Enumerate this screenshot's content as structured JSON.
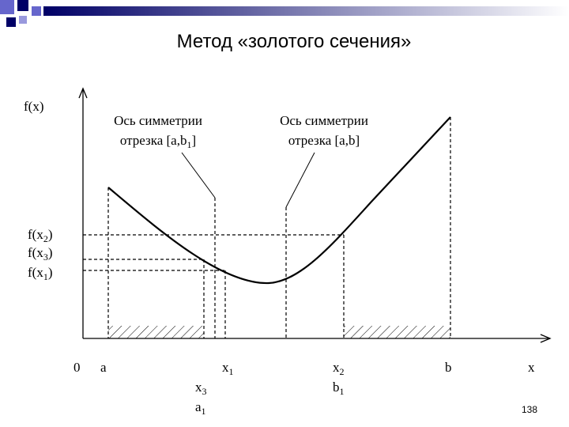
{
  "title": "Метод «золотого сечения»",
  "page_number": "138",
  "labels": [
    {
      "base": "f(x)"
    },
    {
      "base": "f(x",
      "sub": "2",
      "tail": ")"
    },
    {
      "base": "f(x",
      "sub": "3",
      "tail": ")"
    },
    {
      "base": "f(x",
      "sub": "1",
      "tail": ")"
    },
    {
      "base": "0"
    },
    {
      "base": "a"
    },
    {
      "base": "x",
      "sub": "1"
    },
    {
      "base": "x",
      "sub": "2"
    },
    {
      "base": "b"
    },
    {
      "base": "x"
    },
    {
      "base": "x",
      "sub": "3"
    },
    {
      "base": "a",
      "sub": "1"
    },
    {
      "base": "b",
      "sub": "1"
    }
  ],
  "annotations": [
    {
      "line1": "Ось симметрии",
      "line2": {
        "base": "отрезка [a,b",
        "sub": "1",
        "tail": "]"
      }
    },
    {
      "line1": "Ось симметрии",
      "line2": {
        "base": "отрезка [a,b]"
      }
    }
  ]
}
